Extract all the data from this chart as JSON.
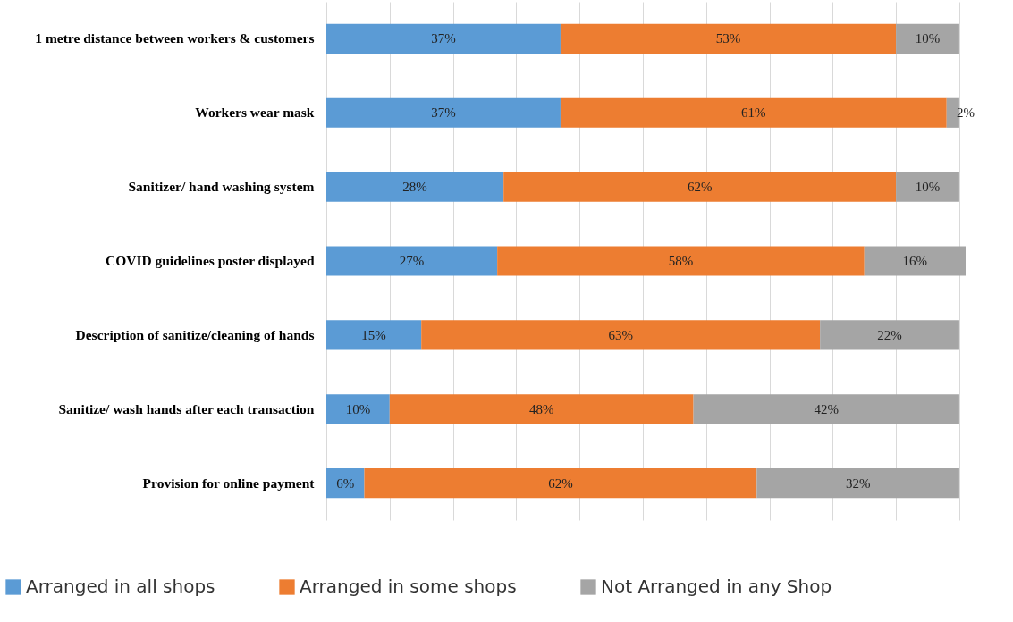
{
  "chart_data": {
    "type": "bar",
    "orientation": "horizontal",
    "stacked": true,
    "categories": [
      "1 metre distance between workers & customers",
      "Workers wear mask",
      "Sanitizer/ hand washing system",
      "COVID guidelines poster displayed",
      "Description of sanitize/cleaning of hands",
      "Sanitize/ wash hands after each transaction",
      "Provision for online payment"
    ],
    "series": [
      {
        "name": "Arranged in all shops",
        "color": "#5b9bd5",
        "values": [
          37,
          37,
          28,
          27,
          15,
          10,
          6
        ],
        "value_labels": [
          "37%",
          "37%",
          "28%",
          "27%",
          "15%",
          "10%",
          "6%"
        ]
      },
      {
        "name": "Arranged in some shops",
        "color": "#ed7d31",
        "values": [
          53,
          61,
          62,
          58,
          63,
          48,
          62
        ],
        "value_labels": [
          "53%",
          "61%",
          "62%",
          "58%",
          "63%",
          "48%",
          "62%"
        ]
      },
      {
        "name": "Not Arranged in any Shop",
        "color": "#a5a5a5",
        "values": [
          10,
          2,
          10,
          16,
          22,
          42,
          32
        ],
        "value_labels": [
          "10%",
          "2%",
          "10%",
          "16%",
          "22%",
          "42%",
          "32%"
        ]
      }
    ],
    "xlim": [
      0,
      101
    ],
    "xticks": [
      0,
      10,
      20,
      30,
      40,
      50,
      60,
      70,
      80,
      90,
      100
    ],
    "tick_labels": "y",
    "grid": "x",
    "legend": "bottom"
  }
}
